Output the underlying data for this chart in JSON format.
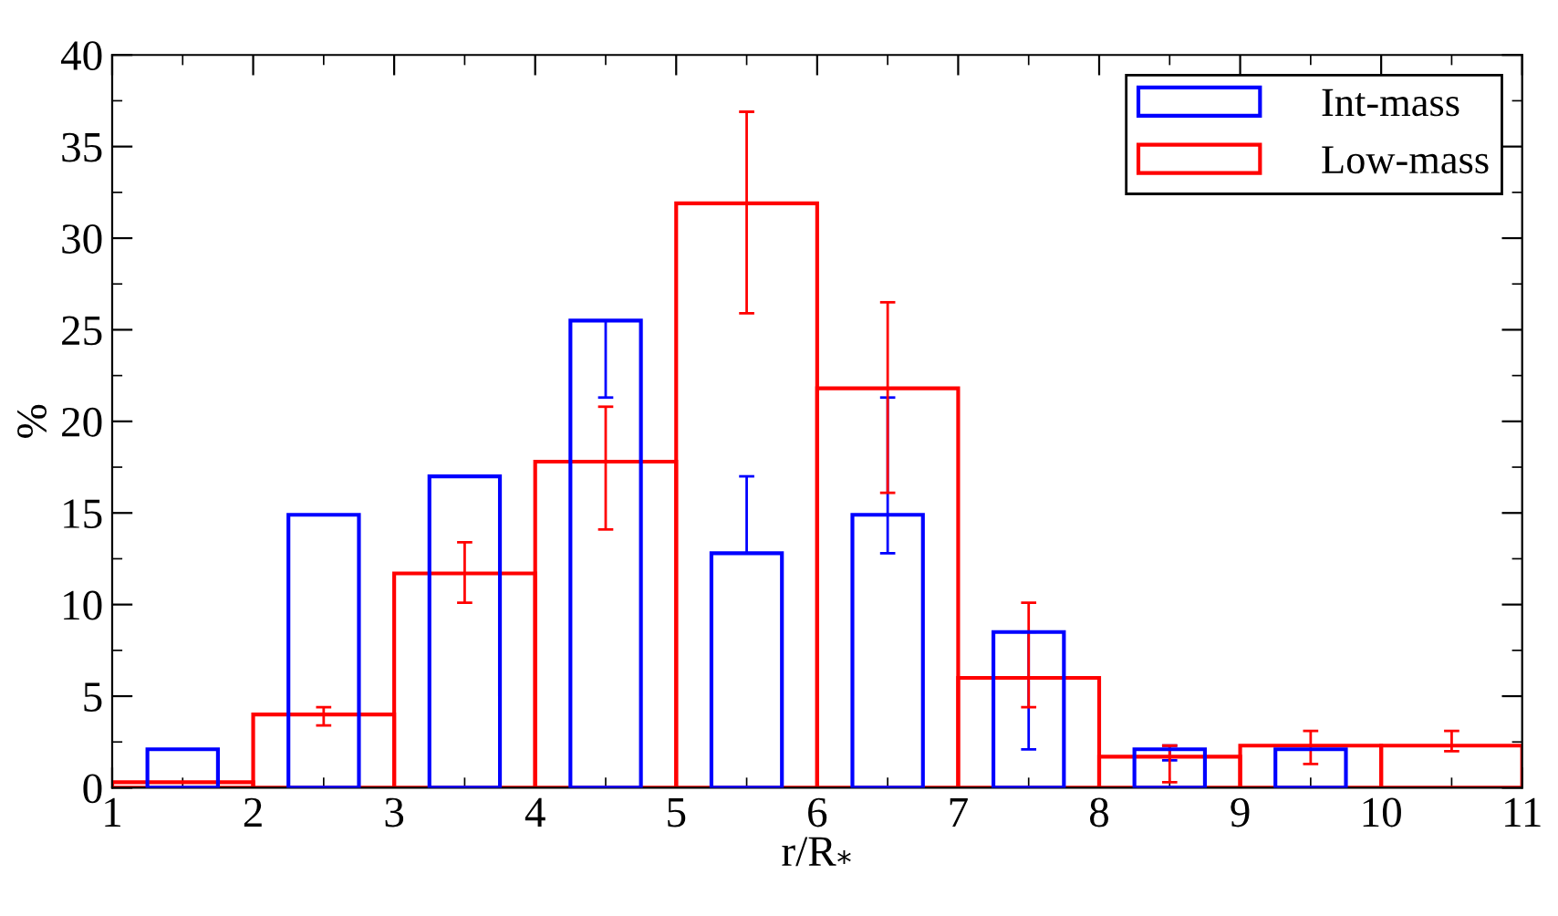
{
  "chart_data": {
    "type": "histogram",
    "xlabel": "r/R$_{*}$",
    "ylabel": "%",
    "xlim": [
      1,
      11
    ],
    "ylim": [
      0,
      40
    ],
    "xticks": [
      1,
      2,
      3,
      4,
      5,
      6,
      7,
      8,
      9,
      10,
      11
    ],
    "yticks": [
      0,
      5,
      10,
      15,
      20,
      25,
      30,
      35,
      40
    ],
    "grid": false,
    "legend": "top right",
    "series": [
      {
        "name": "Int-mass",
        "type": "bar",
        "color": "#0000ff",
        "x": [
          1.5,
          2.5,
          3.5,
          4.5,
          5.5,
          6.5,
          7.5,
          8.5,
          9.5
        ],
        "values": [
          2.1,
          14.9,
          17.0,
          25.5,
          12.8,
          14.9,
          8.5,
          2.1,
          2.1
        ],
        "errors": [
          null,
          null,
          null,
          [
            21.3,
            25.5
          ],
          [
            12.8,
            17.0
          ],
          [
            12.8,
            21.3
          ],
          [
            2.1,
            8.5
          ],
          [
            1.5,
            2.3
          ],
          null
        ]
      },
      {
        "name": "Low-mass",
        "color": "#ff0000",
        "bins": [
          1,
          2,
          3,
          4,
          5,
          6,
          7,
          8,
          9,
          10,
          11
        ],
        "values": [
          0.3,
          4.0,
          11.7,
          17.8,
          31.9,
          21.8,
          6.0,
          1.7,
          2.3,
          2.3
        ],
        "errors": [
          null,
          [
            3.4,
            4.4
          ],
          [
            10.1,
            13.4
          ],
          [
            14.1,
            20.8
          ],
          [
            25.9,
            36.9
          ],
          [
            16.1,
            26.5
          ],
          [
            4.4,
            10.1
          ],
          [
            0.3,
            2.3
          ],
          [
            1.3,
            3.1
          ],
          [
            2.0,
            3.1
          ]
        ]
      }
    ]
  }
}
